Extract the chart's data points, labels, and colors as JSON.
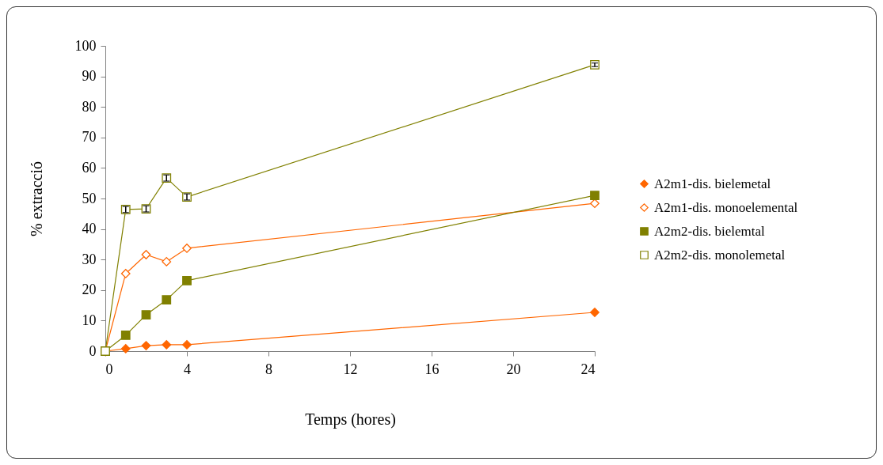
{
  "chart_data": {
    "type": "line",
    "xlabel": "Temps (hores)",
    "ylabel": "% extracció",
    "x": [
      0,
      1,
      2,
      3,
      4,
      24
    ],
    "series": [
      {
        "name": "A2m1-dis. bielemetal",
        "color": "#ff6600",
        "marker": "diamond",
        "values": [
          0,
          0.8,
          1.8,
          2.1,
          2.1,
          12.7
        ]
      },
      {
        "name": "A2m1-dis. monoelemental",
        "color": "#ff6600",
        "marker": "diamond-open",
        "values": [
          0,
          25.4,
          31.6,
          29.3,
          33.7,
          48.4
        ]
      },
      {
        "name": "A2m2-dis. bielemtal",
        "color": "#808000",
        "marker": "square",
        "values": [
          0,
          5.2,
          11.9,
          16.8,
          23.1,
          51
        ]
      },
      {
        "name": "A2m2-dis. monolemetal",
        "color": "#808000",
        "marker": "square-open",
        "values": [
          0,
          46.4,
          46.6,
          56.7,
          50.5,
          93.8
        ],
        "errors": [
          null,
          1,
          1,
          1,
          1,
          0.6
        ]
      }
    ],
    "xlim": [
      0,
      24
    ],
    "xticks": [
      0,
      4,
      8,
      12,
      16,
      20,
      24
    ],
    "ylim": [
      0,
      100
    ],
    "yticks": [
      0,
      10,
      20,
      30,
      40,
      50,
      60,
      70,
      80,
      90,
      100
    ],
    "grid": false,
    "legend": "right"
  }
}
